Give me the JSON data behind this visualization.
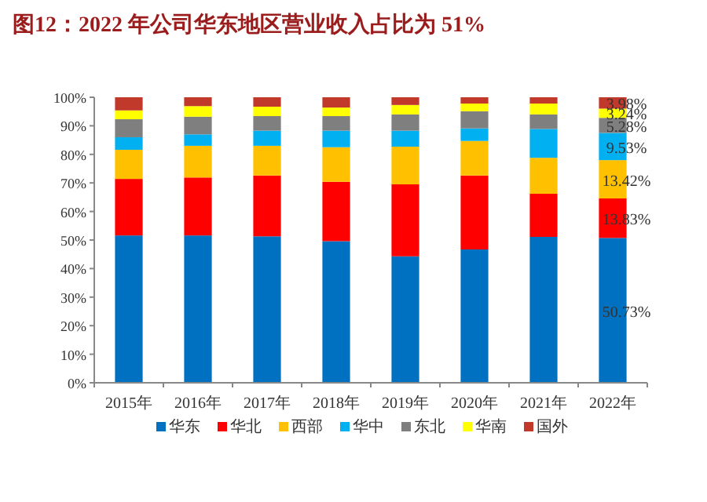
{
  "chart_data": {
    "type": "bar",
    "stacked": true,
    "title": "图12：2022 年公司华东地区营业收入占比为 51%",
    "categories": [
      "2015年",
      "2016年",
      "2017年",
      "2018年",
      "2019年",
      "2020年",
      "2021年",
      "2022年"
    ],
    "series": [
      {
        "name": "华东",
        "color": "#0070c0",
        "values": [
          51.6,
          51.6,
          51.3,
          49.6,
          44.3,
          46.7,
          51.1,
          50.73
        ],
        "value_labels": [
          null,
          null,
          null,
          null,
          null,
          null,
          null,
          "50.73%"
        ]
      },
      {
        "name": "华北",
        "color": "#ff0000",
        "values": [
          19.8,
          20.3,
          21.3,
          20.8,
          25.2,
          25.9,
          15.1,
          13.83
        ],
        "value_labels": [
          null,
          null,
          null,
          null,
          null,
          null,
          null,
          "13.83%"
        ]
      },
      {
        "name": "西部",
        "color": "#ffc000",
        "values": [
          10.2,
          11.1,
          10.4,
          12.1,
          13.2,
          12.1,
          12.6,
          13.42
        ],
        "value_labels": [
          null,
          null,
          null,
          null,
          null,
          null,
          null,
          "13.42%"
        ]
      },
      {
        "name": "华中",
        "color": "#00b0f0",
        "values": [
          4.4,
          4.0,
          5.3,
          5.8,
          5.6,
          4.4,
          10.1,
          9.53
        ],
        "value_labels": [
          null,
          null,
          null,
          null,
          null,
          null,
          null,
          "9.53%"
        ]
      },
      {
        "name": "东北",
        "color": "#7f7f7f",
        "values": [
          6.3,
          6.2,
          5.1,
          5.1,
          5.7,
          6.0,
          5.1,
          5.28
        ],
        "value_labels": [
          null,
          null,
          null,
          null,
          null,
          null,
          null,
          "5.28%"
        ]
      },
      {
        "name": "华南",
        "color": "#ffff00",
        "values": [
          3.1,
          3.7,
          3.3,
          3.0,
          3.3,
          2.7,
          3.8,
          3.24
        ],
        "value_labels": [
          null,
          null,
          null,
          null,
          null,
          null,
          null,
          "3.24%"
        ]
      },
      {
        "name": "国外",
        "color": "#c0392b",
        "values": [
          4.6,
          3.1,
          3.3,
          3.6,
          2.7,
          2.2,
          2.2,
          3.98
        ],
        "value_labels": [
          null,
          null,
          null,
          null,
          null,
          null,
          null,
          "3.98%"
        ]
      }
    ],
    "ylim": [
      0,
      100
    ],
    "yticks": [
      {
        "value": 0,
        "label": "0%"
      },
      {
        "value": 10,
        "label": "10%"
      },
      {
        "value": 20,
        "label": "20%"
      },
      {
        "value": 30,
        "label": "30%"
      },
      {
        "value": 40,
        "label": "40%"
      },
      {
        "value": 50,
        "label": "50%"
      },
      {
        "value": 60,
        "label": "60%"
      },
      {
        "value": 70,
        "label": "70%"
      },
      {
        "value": 80,
        "label": "80%"
      },
      {
        "value": 90,
        "label": "90%"
      },
      {
        "value": 100,
        "label": "100%"
      }
    ],
    "grid": false,
    "legend": "bottom"
  }
}
